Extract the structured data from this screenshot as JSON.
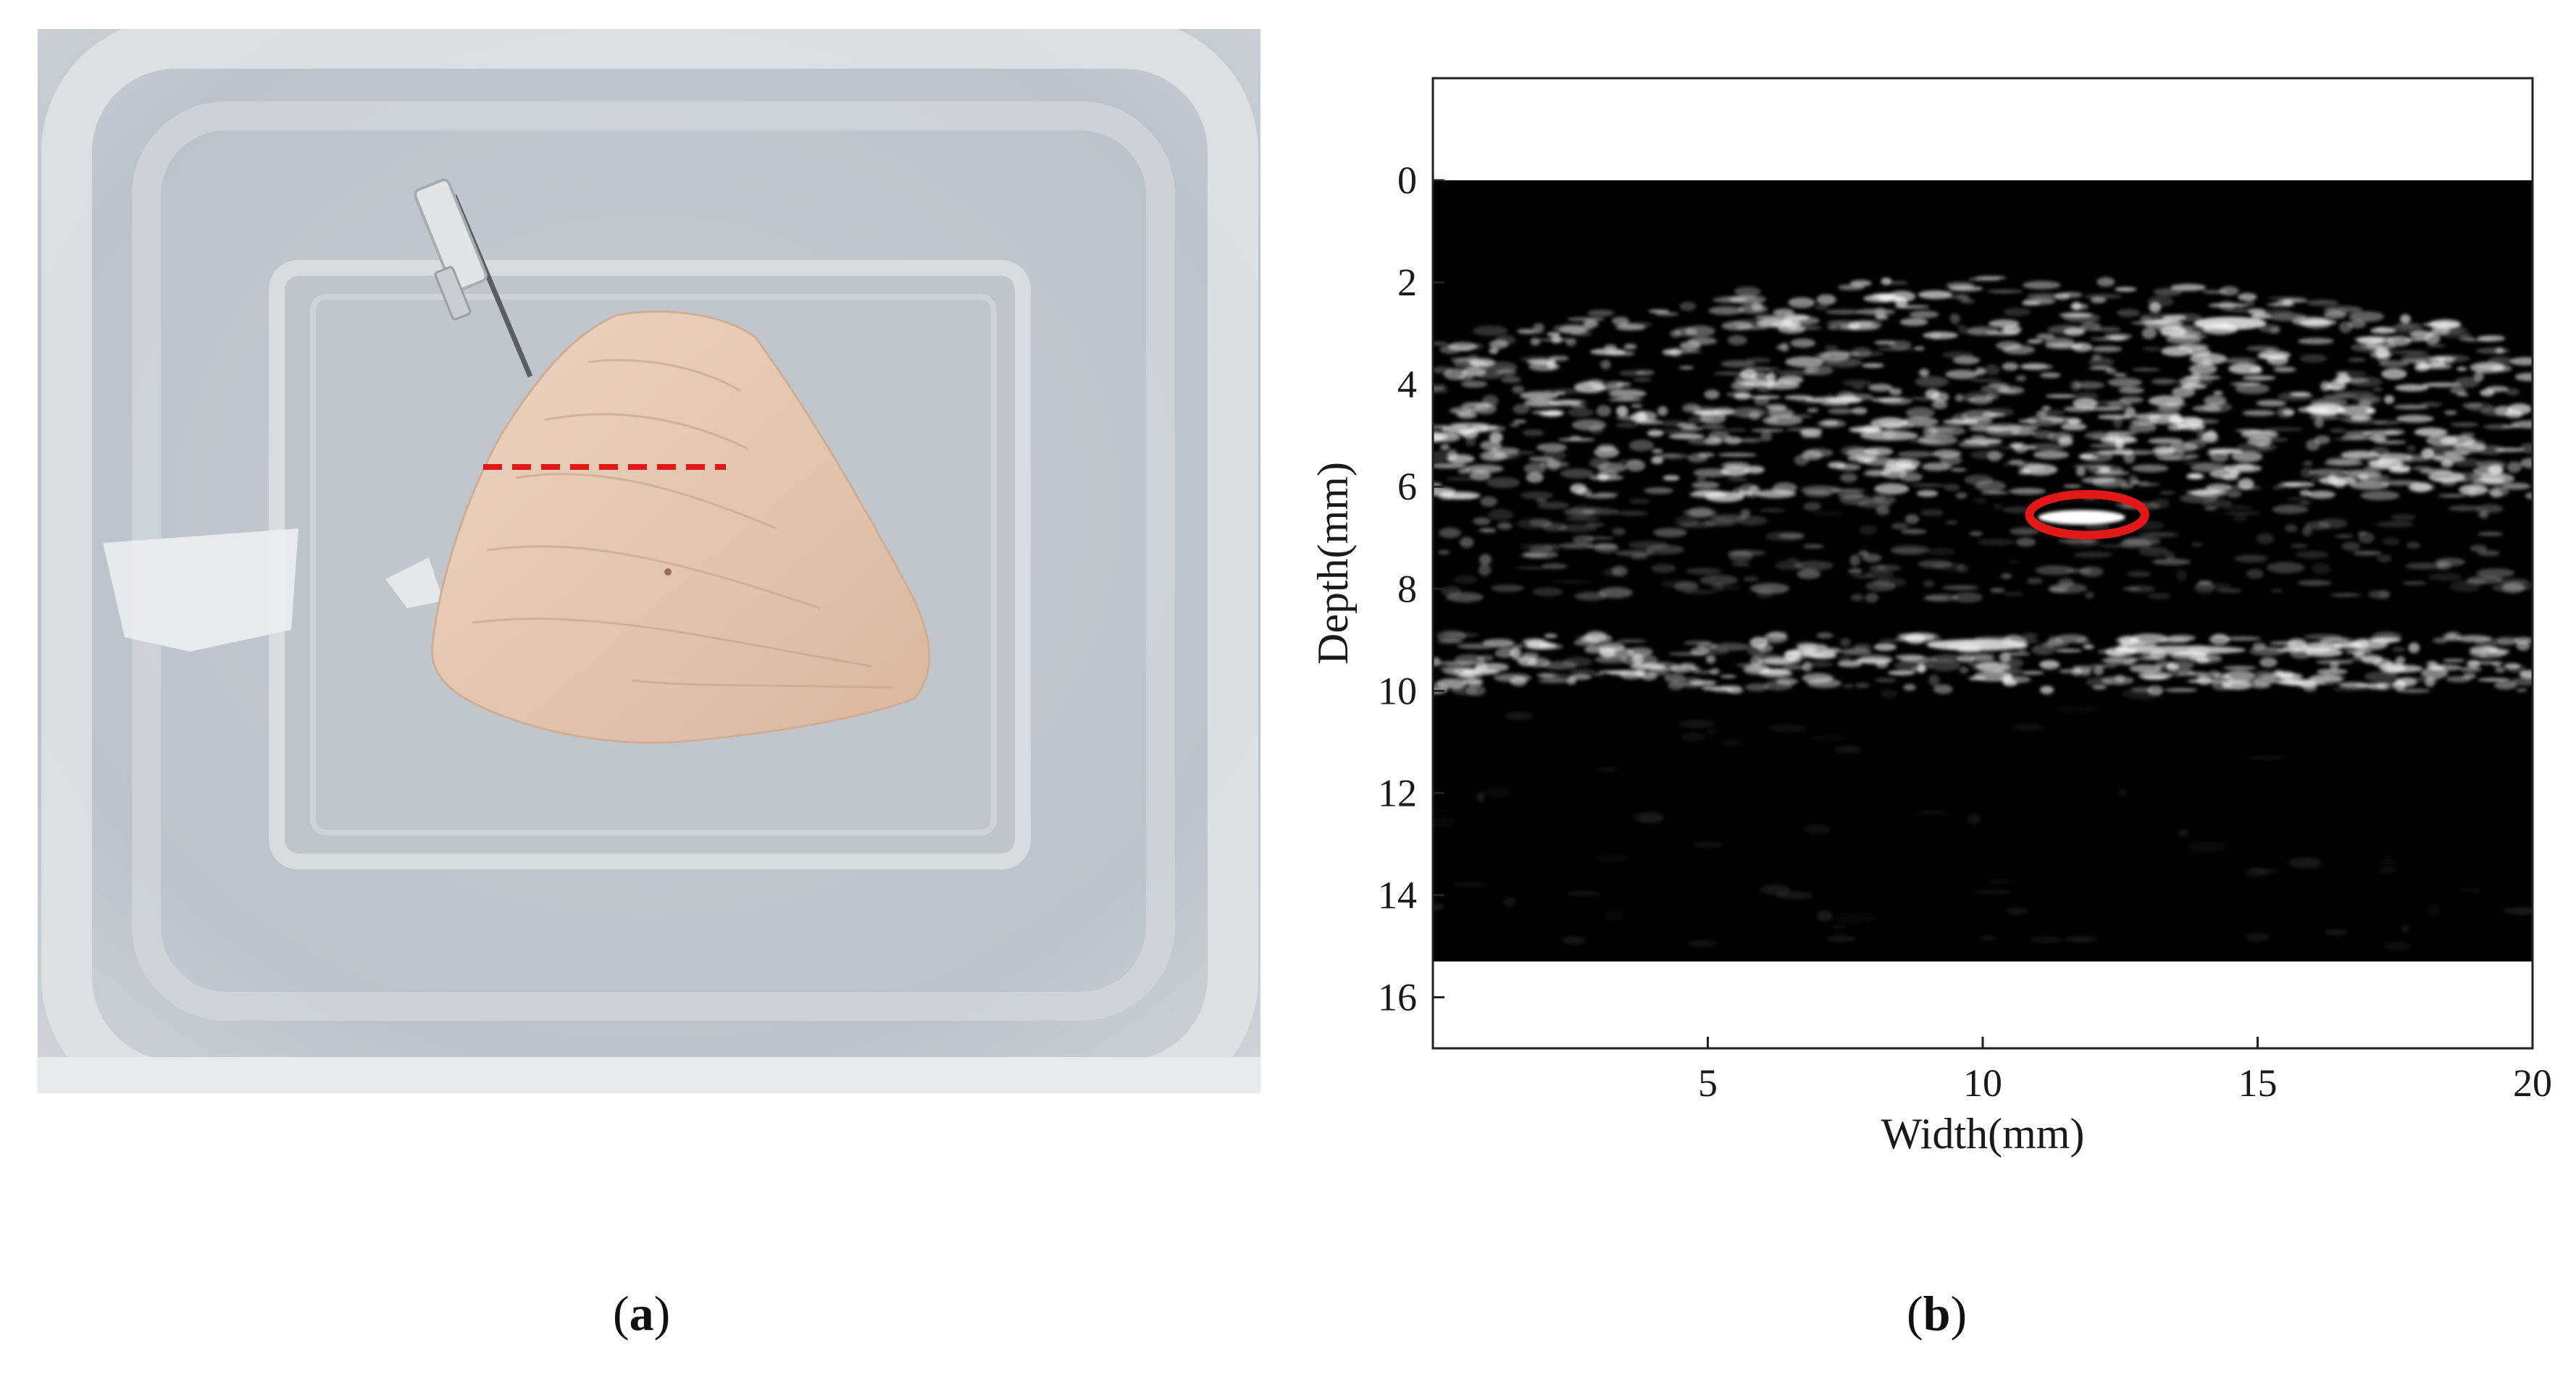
{
  "panels": {
    "a": {
      "caption_open": "(",
      "caption_letter": "a",
      "caption_close": ")"
    },
    "b": {
      "caption_open": "(",
      "caption_letter": "b",
      "caption_close": ")"
    }
  },
  "colors": {
    "marker": "#e01818",
    "image_background": "#000000",
    "speckle": "#ffffff"
  },
  "chart_data": {
    "type": "heatmap",
    "title": "",
    "xlabel": "Width(mm)",
    "ylabel": "Depth(mm)",
    "xlim": [
      0,
      20
    ],
    "ylim": [
      17,
      -2
    ],
    "x_ticks": [
      5,
      10,
      15,
      20
    ],
    "y_ticks": [
      0,
      2,
      4,
      6,
      8,
      10,
      12,
      14,
      16
    ],
    "image_extent": {
      "x": [
        0,
        20
      ],
      "y": [
        0,
        15.3
      ]
    },
    "grid": false,
    "annotation": {
      "shape": "ellipse",
      "color": "red",
      "center": [
        11.9,
        6.55
      ],
      "width_mm": 2.1,
      "height_mm": 0.8
    }
  }
}
